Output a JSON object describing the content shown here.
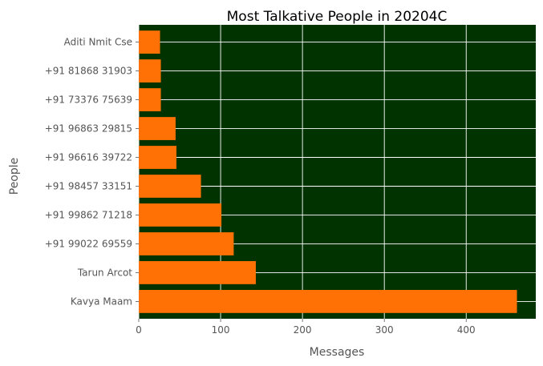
{
  "chart_data": {
    "type": "bar",
    "orientation": "horizontal",
    "title": "Most Talkative People in 20204C",
    "xlabel": "Messages",
    "ylabel": "People",
    "xlim": [
      0,
      485
    ],
    "xticks": [
      0,
      100,
      200,
      300,
      400
    ],
    "grid": true,
    "categories": [
      "Kavya Maam",
      "Tarun Arcot",
      "+91 99022 69559",
      "+91 99862 71218",
      "+91 98457 33151",
      "+91 96616 39722",
      "+91 96863 29815",
      "+91 73376 75639",
      "+91 81868 31903",
      "Aditi Nmit Cse"
    ],
    "values": [
      462,
      143,
      116,
      101,
      76,
      46,
      45,
      27,
      27,
      26
    ],
    "colors": {
      "bar": "#ff7105",
      "plot_background": "#003300",
      "grid": "#ffffff"
    }
  }
}
